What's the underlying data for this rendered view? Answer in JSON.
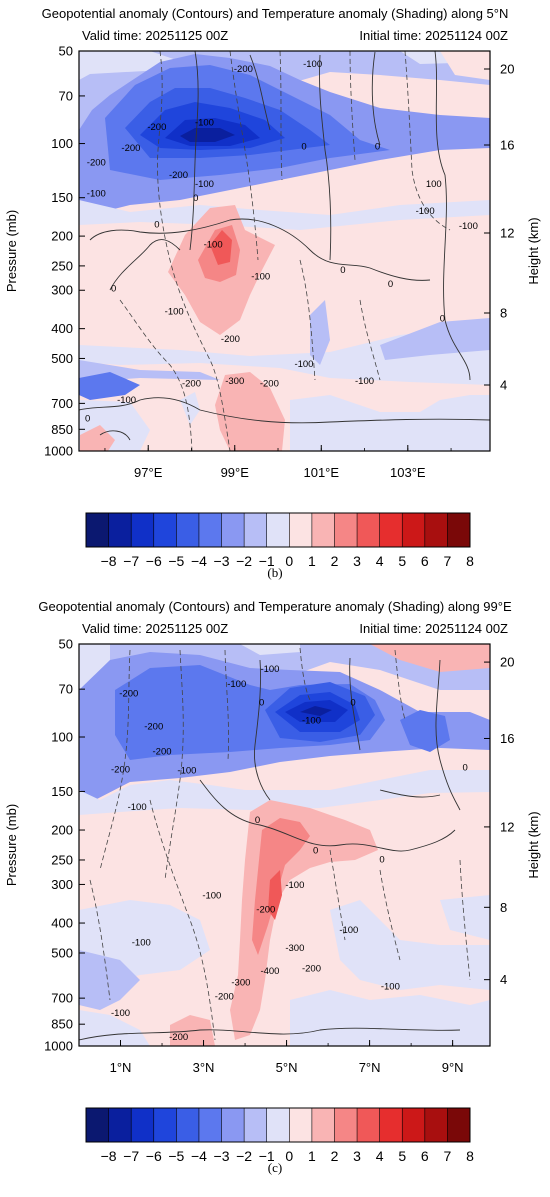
{
  "colorbar": {
    "levels": [
      "-8",
      "-7",
      "-6",
      "-5",
      "-4",
      "-3",
      "-2",
      "-1",
      "0",
      "1",
      "2",
      "3",
      "4",
      "5",
      "6",
      "7",
      "8"
    ],
    "colors": [
      "#0b1870",
      "#0a1f9e",
      "#1030c8",
      "#1f45dc",
      "#3a5ee6",
      "#5c78ee",
      "#8a98f2",
      "#b7bef6",
      "#e0e2f8",
      "#fce3e3",
      "#f9b4b4",
      "#f58686",
      "#f05858",
      "#e62e2e",
      "#cc1818",
      "#a80f0f",
      "#7a0808"
    ]
  },
  "chart_data": [
    {
      "type": "heatmap",
      "panel": "(b)",
      "title": "Geopotential anomaly (Contours) and Temperature anomaly (Shading) along 5°N",
      "valid_time": "Valid time: 20251125 00Z",
      "initial_time": "Initial time: 20251124 00Z",
      "ylabel": "Pressure (mb)",
      "y2label": "Height (km)",
      "x_ticks": [
        "97°E",
        "99°E",
        "101°E",
        "103°E"
      ],
      "x_tick_values": [
        97,
        99,
        101,
        103
      ],
      "xlim": [
        95.4,
        104.9
      ],
      "y_ticks": [
        "50",
        "70",
        "100",
        "150",
        "200",
        "250",
        "300",
        "400",
        "500",
        "700",
        "850",
        "1000"
      ],
      "y_tick_values": [
        50,
        70,
        100,
        150,
        200,
        250,
        300,
        400,
        500,
        700,
        850,
        1000
      ],
      "ylim": [
        1000,
        50
      ],
      "y_scale": "log",
      "y2_ticks": [
        "20",
        "16",
        "12",
        "8",
        "4"
      ],
      "contour_labels": [
        {
          "text": "-200",
          "x": 99.2,
          "y": 57
        },
        {
          "text": "-100",
          "x": 100.8,
          "y": 55
        },
        {
          "text": "-100",
          "x": 98.3,
          "y": 85
        },
        {
          "text": "-200",
          "x": 97.2,
          "y": 88
        },
        {
          "text": "-200",
          "x": 96.6,
          "y": 103
        },
        {
          "text": "-200",
          "x": 97.7,
          "y": 126
        },
        {
          "text": "-100",
          "x": 98.3,
          "y": 135
        },
        {
          "text": "-200",
          "x": 95.8,
          "y": 115
        },
        {
          "text": "0",
          "x": 100.6,
          "y": 102
        },
        {
          "text": "0",
          "x": 102.3,
          "y": 102
        },
        {
          "text": "-100",
          "x": 95.8,
          "y": 145
        },
        {
          "text": "0",
          "x": 98.1,
          "y": 150
        },
        {
          "text": "100",
          "x": 103.6,
          "y": 135
        },
        {
          "text": "0",
          "x": 97.2,
          "y": 183
        },
        {
          "text": "-100",
          "x": 98.5,
          "y": 212
        },
        {
          "text": "-100",
          "x": 103.4,
          "y": 165
        },
        {
          "text": "-100",
          "x": 104.4,
          "y": 185
        },
        {
          "text": "0",
          "x": 101.5,
          "y": 257
        },
        {
          "text": "0",
          "x": 102.6,
          "y": 285
        },
        {
          "text": "-100",
          "x": 99.6,
          "y": 270
        },
        {
          "text": "0",
          "x": 96.2,
          "y": 295
        },
        {
          "text": "-100",
          "x": 97.6,
          "y": 350
        },
        {
          "text": "0",
          "x": 103.8,
          "y": 370
        },
        {
          "text": "-200",
          "x": 98.9,
          "y": 430
        },
        {
          "text": "-100",
          "x": 100.6,
          "y": 520
        },
        {
          "text": "-100",
          "x": 102.0,
          "y": 590
        },
        {
          "text": "-200",
          "x": 98.0,
          "y": 600
        },
        {
          "text": "-300",
          "x": 99.0,
          "y": 590
        },
        {
          "text": "-200",
          "x": 99.8,
          "y": 600
        },
        {
          "text": "-100",
          "x": 96.5,
          "y": 680
        },
        {
          "text": "0",
          "x": 95.6,
          "y": 780
        }
      ]
    },
    {
      "type": "heatmap",
      "panel": "(c)",
      "title": "Geopotential anomaly (Contours) and Temperature anomaly (Shading) along 99°E",
      "valid_time": "Valid time: 20251125 00Z",
      "initial_time": "Initial time: 20251124 00Z",
      "ylabel": "Pressure (mb)",
      "y2label": "Height (km)",
      "x_ticks": [
        "1°N",
        "3°N",
        "5°N",
        "7°N",
        "9°N"
      ],
      "x_tick_values": [
        1,
        3,
        5,
        7,
        9
      ],
      "xlim": [
        0.0,
        9.9
      ],
      "y_ticks": [
        "50",
        "70",
        "100",
        "150",
        "200",
        "250",
        "300",
        "400",
        "500",
        "700",
        "850",
        "1000"
      ],
      "y_tick_values": [
        50,
        70,
        100,
        150,
        200,
        250,
        300,
        400,
        500,
        700,
        850,
        1000
      ],
      "ylim": [
        1000,
        50
      ],
      "y_scale": "log",
      "y2_ticks": [
        "20",
        "16",
        "12",
        "8",
        "4"
      ],
      "contour_labels": [
        {
          "text": "-200",
          "x": 1.2,
          "y": 72
        },
        {
          "text": "-200",
          "x": 1.8,
          "y": 92
        },
        {
          "text": "-200",
          "x": 2.0,
          "y": 111
        },
        {
          "text": "-200",
          "x": 1.0,
          "y": 127
        },
        {
          "text": "-100",
          "x": 2.6,
          "y": 128
        },
        {
          "text": "-100",
          "x": 3.8,
          "y": 67
        },
        {
          "text": "-100",
          "x": 4.6,
          "y": 60
        },
        {
          "text": "0",
          "x": 4.4,
          "y": 77
        },
        {
          "text": "0",
          "x": 6.6,
          "y": 77
        },
        {
          "text": "-100",
          "x": 5.6,
          "y": 88
        },
        {
          "text": "0",
          "x": 9.3,
          "y": 125
        },
        {
          "text": "-100",
          "x": 1.4,
          "y": 168
        },
        {
          "text": "0",
          "x": 4.3,
          "y": 185
        },
        {
          "text": "0",
          "x": 5.7,
          "y": 232
        },
        {
          "text": "0",
          "x": 7.3,
          "y": 248
        },
        {
          "text": "-100",
          "x": 5.2,
          "y": 300
        },
        {
          "text": "-100",
          "x": 3.2,
          "y": 325
        },
        {
          "text": "-200",
          "x": 4.5,
          "y": 360
        },
        {
          "text": "-300",
          "x": 5.2,
          "y": 480
        },
        {
          "text": "-100",
          "x": 6.5,
          "y": 420
        },
        {
          "text": "-100",
          "x": 1.5,
          "y": 460
        },
        {
          "text": "-400",
          "x": 4.6,
          "y": 570
        },
        {
          "text": "-300",
          "x": 3.9,
          "y": 620
        },
        {
          "text": "-200",
          "x": 5.6,
          "y": 560
        },
        {
          "text": "-200",
          "x": 3.5,
          "y": 690
        },
        {
          "text": "-100",
          "x": 7.5,
          "y": 640
        },
        {
          "text": "-100",
          "x": 1.0,
          "y": 780
        },
        {
          "text": "-200",
          "x": 2.4,
          "y": 930
        }
      ]
    }
  ],
  "panels": {
    "b_label": "(b)",
    "c_label": "(c)"
  }
}
